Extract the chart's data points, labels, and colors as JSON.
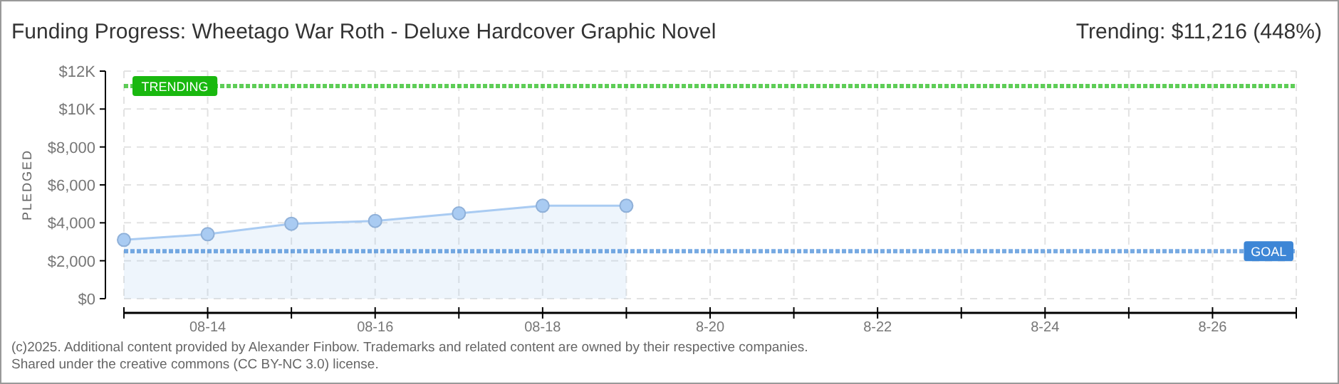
{
  "chart_data": {
    "type": "area",
    "title": "Funding Progress: Wheetago War Roth - Deluxe Hardcover Graphic Novel",
    "subtitle": "Trending: $11,216 (448%)",
    "ylabel": "PLEDGED",
    "x": [
      "--08-13",
      "--08-14",
      "--08-15",
      "--08-16",
      "--08-17",
      "--08-18",
      "--08-19"
    ],
    "series": [
      {
        "color": "#a9cbf2",
        "values": [
          3100,
          3400,
          3950,
          4100,
          4500,
          4900,
          4900
        ]
      }
    ],
    "xlim": [
      "--08-13",
      "--08-27"
    ],
    "xticks": [
      {
        "value": "--08-13",
        "label": null
      },
      {
        "value": "--08-14",
        "label": "08-14"
      },
      {
        "value": "--08-15",
        "label": null
      },
      {
        "value": "--08-16",
        "label": "08-16"
      },
      {
        "value": "--08-17",
        "label": null
      },
      {
        "value": "--08-18",
        "label": "08-18"
      },
      {
        "value": "--08-19",
        "label": null
      },
      {
        "value": "--08-20",
        "label": "8-20"
      },
      {
        "value": "--08-21",
        "label": null
      },
      {
        "value": "--08-22",
        "label": "8-22"
      },
      {
        "value": "--08-23",
        "label": null
      },
      {
        "value": "--08-24",
        "label": "8-24"
      },
      {
        "value": "--08-25",
        "label": null
      },
      {
        "value": "--08-26",
        "label": "8-26"
      },
      {
        "value": "--08-27",
        "label": null
      }
    ],
    "ylim": [
      0,
      12000
    ],
    "yticks": [
      {
        "value": 0,
        "label": "$0"
      },
      {
        "value": 2000,
        "label": "$2,000"
      },
      {
        "value": 4000,
        "label": "$4,000"
      },
      {
        "value": 6000,
        "label": "$6,000"
      },
      {
        "value": 8000,
        "label": "$8,000"
      },
      {
        "value": 10000,
        "label": "$10K"
      },
      {
        "value": 12000,
        "label": "$12K"
      }
    ],
    "ref_lines": [
      {
        "axis": "y",
        "value": 11216,
        "label": "TRENDING",
        "color": "#19b80f",
        "line_style": "dotted"
      },
      {
        "axis": "y",
        "value": 2500,
        "label": "GOAL",
        "color": "#3d86d6",
        "line_style": "dotted"
      }
    ],
    "grid": true,
    "marker": "circle",
    "annotations": [
      "(c)2025. Additional content provided by Alexander Finbow. Trademarks and related content are owned by their respective companies.",
      "Shared under the creative commons (CC BY-NC 3.0) license."
    ]
  }
}
